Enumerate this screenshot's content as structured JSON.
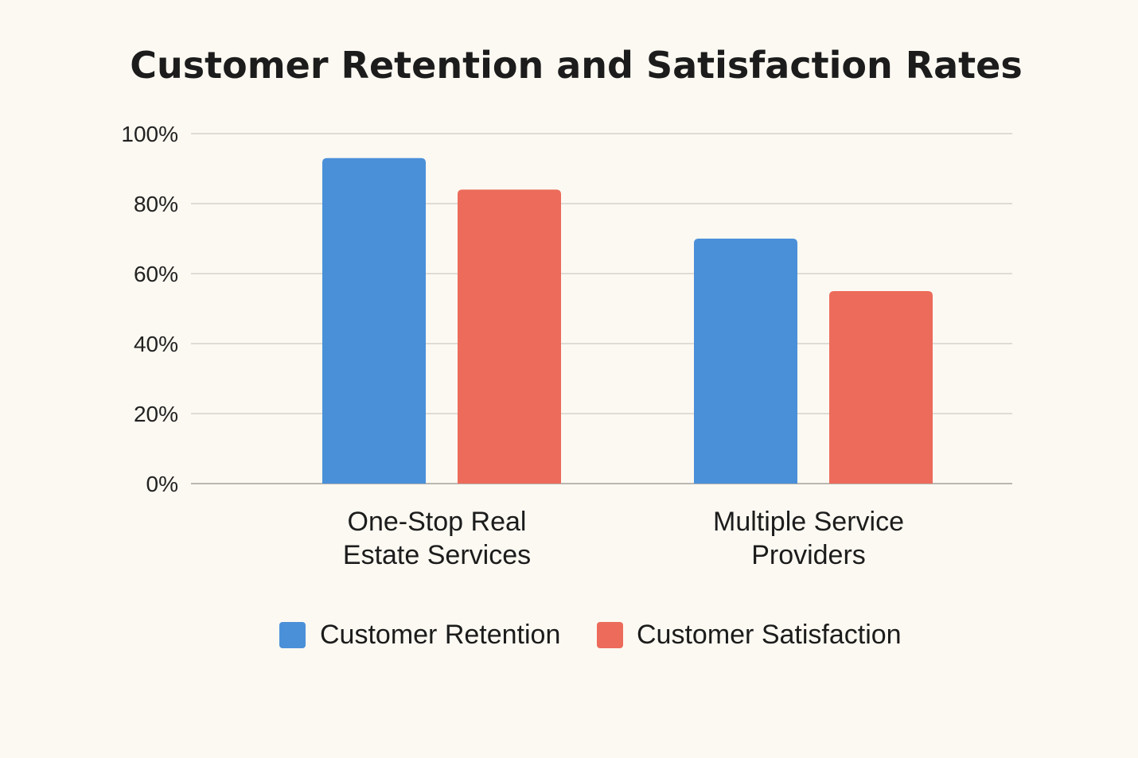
{
  "chart_data": {
    "type": "bar",
    "title": "Customer Retention and Satisfaction Rates",
    "xlabel": "",
    "ylabel": "",
    "ylim": [
      0,
      100
    ],
    "y_ticks": [
      "0%",
      "20%",
      "40%",
      "60%",
      "80%",
      "100%"
    ],
    "y_tick_values": [
      0,
      20,
      40,
      60,
      80,
      100
    ],
    "categories": [
      [
        "One-Stop Real",
        "Estate Services"
      ],
      [
        "Multiple Service",
        "Providers"
      ]
    ],
    "series": [
      {
        "name": "Customer Retention",
        "values": [
          93,
          70
        ],
        "color": "#4a90d9"
      },
      {
        "name": "Customer Satisfaction",
        "values": [
          84,
          55
        ],
        "color": "#ec6b5a"
      }
    ],
    "grid": true,
    "legend_position": "bottom"
  }
}
